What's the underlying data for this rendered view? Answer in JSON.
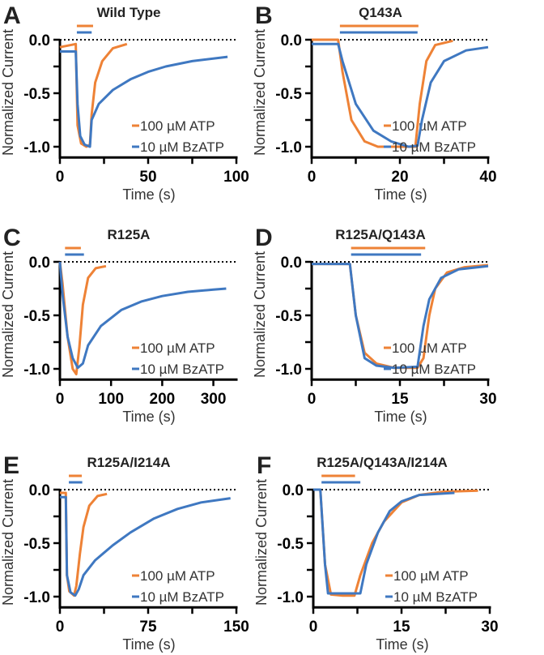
{
  "chart_data": [
    {
      "type": "line",
      "letter": "A",
      "title": "Wild Type",
      "xlabel": "Time (s)",
      "ylabel": "Normalized Current",
      "xlim": [
        0,
        100
      ],
      "xticks": [
        0,
        25,
        50,
        75,
        100
      ],
      "xticklabels": [
        "0",
        "",
        "50",
        "",
        "100"
      ],
      "ylim": [
        -1.1,
        0
      ],
      "yticks": [
        0,
        -0.25,
        -0.5,
        -0.75,
        -1.0
      ],
      "yticklabels": [
        "0.0",
        "",
        "-0.5",
        "",
        "-1.0"
      ],
      "baseline": 0,
      "series": [
        {
          "name": "100 µM ATP",
          "color": "#ee8236",
          "application": [
            9.6,
            18.8
          ],
          "points": [
            [
              0,
              -0.07
            ],
            [
              9,
              -0.04
            ],
            [
              10,
              -0.8
            ],
            [
              12,
              -0.97
            ],
            [
              15,
              -1.0
            ],
            [
              17,
              -0.98
            ],
            [
              18,
              -0.7
            ],
            [
              20,
              -0.4
            ],
            [
              24,
              -0.2
            ],
            [
              30,
              -0.08
            ],
            [
              38,
              -0.04
            ]
          ]
        },
        {
          "name": "10 µM BzATP",
          "color": "#3f78c1",
          "application": [
            9.6,
            18.0
          ],
          "points": [
            [
              0,
              -0.11
            ],
            [
              9,
              -0.11
            ],
            [
              10,
              -0.6
            ],
            [
              11.5,
              -0.9
            ],
            [
              14,
              -0.98
            ],
            [
              17,
              -1.0
            ],
            [
              18,
              -0.75
            ],
            [
              22,
              -0.6
            ],
            [
              30,
              -0.47
            ],
            [
              40,
              -0.37
            ],
            [
              50,
              -0.3
            ],
            [
              60,
              -0.25
            ],
            [
              75,
              -0.2
            ],
            [
              95,
              -0.16
            ]
          ]
        }
      ]
    },
    {
      "type": "line",
      "letter": "B",
      "title": "Q143A",
      "xlabel": "Time (s)",
      "ylabel": "Normalized Current",
      "xlim": [
        0,
        40
      ],
      "xticks": [
        0,
        10,
        20,
        30,
        40
      ],
      "xticklabels": [
        "0",
        "",
        "20",
        "",
        "40"
      ],
      "ylim": [
        -1.1,
        0
      ],
      "yticks": [
        0,
        -0.25,
        -0.5,
        -0.75,
        -1.0
      ],
      "yticklabels": [
        "0.0",
        "",
        "-0.5",
        "",
        "-1.0"
      ],
      "baseline": 0,
      "series": [
        {
          "name": "100 µM ATP",
          "color": "#ee8236",
          "application": [
            6.4,
            24.2
          ],
          "points": [
            [
              0,
              0
            ],
            [
              6,
              0
            ],
            [
              7,
              -0.3
            ],
            [
              9,
              -0.75
            ],
            [
              12,
              -0.95
            ],
            [
              15,
              -1.0
            ],
            [
              23.5,
              -1.0
            ],
            [
              24.5,
              -0.6
            ],
            [
              26,
              -0.2
            ],
            [
              28,
              -0.05
            ],
            [
              32,
              -0.01
            ]
          ]
        },
        {
          "name": "10 µM BzATP",
          "color": "#3f78c1",
          "application": [
            6.4,
            24.0
          ],
          "points": [
            [
              0,
              -0.04
            ],
            [
              6,
              -0.04
            ],
            [
              7,
              -0.2
            ],
            [
              10,
              -0.6
            ],
            [
              14,
              -0.85
            ],
            [
              18,
              -0.95
            ],
            [
              22,
              -1.0
            ],
            [
              24,
              -0.99
            ],
            [
              25,
              -0.75
            ],
            [
              27,
              -0.4
            ],
            [
              30,
              -0.2
            ],
            [
              35,
              -0.1
            ],
            [
              40,
              -0.07
            ]
          ]
        }
      ]
    },
    {
      "type": "line",
      "letter": "C",
      "title": "R125A",
      "xlabel": "Time (s)",
      "ylabel": "Normalized Current",
      "xlim": [
        0,
        345
      ],
      "xticks": [
        0,
        100,
        200,
        300
      ],
      "xticklabels": [
        "0",
        "100",
        "200",
        "300"
      ],
      "ylim": [
        -1.1,
        0
      ],
      "yticks": [
        0,
        -0.25,
        -0.5,
        -0.75,
        -1.0
      ],
      "yticklabels": [
        "0.0",
        "",
        "-0.5",
        "",
        "-1.0"
      ],
      "baseline": 0,
      "series": [
        {
          "name": "100 µM ATP",
          "color": "#ee8236",
          "application": [
            10,
            41
          ],
          "points": [
            [
              0,
              0
            ],
            [
              5,
              -0.2
            ],
            [
              15,
              -0.7
            ],
            [
              25,
              -1.0
            ],
            [
              32,
              -1.05
            ],
            [
              38,
              -0.8
            ],
            [
              45,
              -0.4
            ],
            [
              55,
              -0.15
            ],
            [
              70,
              -0.06
            ],
            [
              90,
              -0.04
            ]
          ]
        },
        {
          "name": "10 µM BzATP",
          "color": "#3f78c1",
          "application": [
            10,
            47
          ],
          "points": [
            [
              0,
              0
            ],
            [
              5,
              -0.3
            ],
            [
              15,
              -0.7
            ],
            [
              25,
              -0.9
            ],
            [
              35,
              -0.99
            ],
            [
              45,
              -0.95
            ],
            [
              55,
              -0.78
            ],
            [
              80,
              -0.6
            ],
            [
              120,
              -0.45
            ],
            [
              160,
              -0.37
            ],
            [
              200,
              -0.32
            ],
            [
              250,
              -0.28
            ],
            [
              300,
              -0.26
            ],
            [
              325,
              -0.25
            ]
          ]
        }
      ]
    },
    {
      "type": "line",
      "letter": "D",
      "title": "R125A/Q143A",
      "xlabel": "Time (s)",
      "ylabel": "Normalized Current",
      "xlim": [
        0,
        30
      ],
      "xticks": [
        0,
        7.5,
        15,
        22.5,
        30
      ],
      "xticklabels": [
        "0",
        "",
        "15",
        "",
        "30"
      ],
      "ylim": [
        -1.1,
        0
      ],
      "yticks": [
        0,
        -0.25,
        -0.5,
        -0.75,
        -1.0
      ],
      "yticklabels": [
        "0.0",
        "",
        "-0.5",
        "",
        "-1.0"
      ],
      "baseline": 0,
      "series": [
        {
          "name": "100 µM ATP",
          "color": "#ee8236",
          "application": [
            6.7,
            19.3
          ],
          "points": [
            [
              0,
              -0.02
            ],
            [
              6.5,
              -0.02
            ],
            [
              7.5,
              -0.5
            ],
            [
              9,
              -0.85
            ],
            [
              11,
              -0.95
            ],
            [
              14,
              -0.99
            ],
            [
              18,
              -0.99
            ],
            [
              19,
              -0.9
            ],
            [
              20,
              -0.5
            ],
            [
              21,
              -0.25
            ],
            [
              23,
              -0.1
            ],
            [
              26,
              -0.05
            ],
            [
              30,
              -0.03
            ]
          ]
        },
        {
          "name": "10 µM BzATP",
          "color": "#3f78c1",
          "application": [
            6.7,
            18.6
          ],
          "points": [
            [
              0,
              -0.02
            ],
            [
              6.5,
              -0.02
            ],
            [
              7.5,
              -0.5
            ],
            [
              9,
              -0.9
            ],
            [
              11,
              -0.97
            ],
            [
              14,
              -0.99
            ],
            [
              18,
              -0.98
            ],
            [
              19,
              -0.6
            ],
            [
              20,
              -0.35
            ],
            [
              22,
              -0.15
            ],
            [
              25,
              -0.07
            ],
            [
              30,
              -0.04
            ]
          ]
        }
      ]
    },
    {
      "type": "line",
      "letter": "E",
      "title": "R125A/I214A",
      "xlabel": "Time (s)",
      "ylabel": "Normalized Current",
      "xlim": [
        0,
        150
      ],
      "xticks": [
        0,
        37.5,
        75,
        112.5,
        150
      ],
      "xticklabels": [
        "0",
        "",
        "75",
        "",
        "150"
      ],
      "ylim": [
        -1.1,
        0
      ],
      "yticks": [
        0,
        -0.25,
        -0.5,
        -0.75,
        -1.0
      ],
      "yticklabels": [
        "0.0",
        "",
        "-0.5",
        "",
        "-1.0"
      ],
      "baseline": 0,
      "series": [
        {
          "name": "100 µM ATP",
          "color": "#ee8236",
          "application": [
            7.6,
            18.6
          ],
          "points": [
            [
              0,
              -0.03
            ],
            [
              5,
              -0.03
            ],
            [
              6,
              -0.8
            ],
            [
              8,
              -0.95
            ],
            [
              12,
              -0.99
            ],
            [
              14,
              -0.9
            ],
            [
              17,
              -0.6
            ],
            [
              20,
              -0.35
            ],
            [
              25,
              -0.15
            ],
            [
              32,
              -0.06
            ],
            [
              40,
              -0.04
            ]
          ]
        },
        {
          "name": "10 µM BzATP",
          "color": "#3f78c1",
          "application": [
            7.6,
            19.0
          ],
          "points": [
            [
              0,
              -0.07
            ],
            [
              5,
              -0.07
            ],
            [
              6,
              -0.8
            ],
            [
              9,
              -0.96
            ],
            [
              13,
              -0.99
            ],
            [
              16,
              -0.93
            ],
            [
              20,
              -0.8
            ],
            [
              30,
              -0.66
            ],
            [
              45,
              -0.52
            ],
            [
              60,
              -0.4
            ],
            [
              80,
              -0.27
            ],
            [
              100,
              -0.18
            ],
            [
              120,
              -0.12
            ],
            [
              145,
              -0.08
            ]
          ]
        }
      ]
    },
    {
      "type": "line",
      "letter": "F",
      "title": "R125A/Q143A/I214A",
      "xlabel": "Time (s)",
      "ylabel": "Normalized Current",
      "xlim": [
        0,
        30
      ],
      "xticks": [
        0,
        7.5,
        15,
        22.5,
        30
      ],
      "xticklabels": [
        "0",
        "",
        "15",
        "",
        "30"
      ],
      "ylim": [
        -1.1,
        0
      ],
      "yticks": [
        0,
        -0.25,
        -0.5,
        -0.75,
        -1.0
      ],
      "yticklabels": [
        "0.0",
        "",
        "-0.5",
        "",
        "-1.0"
      ],
      "baseline": 0,
      "series": [
        {
          "name": "100 µM ATP",
          "color": "#ee8236",
          "application": [
            1.4,
            7.1
          ],
          "points": [
            [
              0,
              0
            ],
            [
              1.2,
              0
            ],
            [
              2,
              -0.7
            ],
            [
              3,
              -0.98
            ],
            [
              5,
              -0.99
            ],
            [
              7,
              -0.99
            ],
            [
              8,
              -0.8
            ],
            [
              10,
              -0.5
            ],
            [
              12,
              -0.3
            ],
            [
              15,
              -0.12
            ],
            [
              18,
              -0.05
            ],
            [
              22,
              -0.02
            ],
            [
              28,
              -0.01
            ]
          ]
        },
        {
          "name": "10 µM BzATP",
          "color": "#3f78c1",
          "application": [
            1.4,
            8.0
          ],
          "points": [
            [
              0,
              0
            ],
            [
              1.2,
              0
            ],
            [
              2,
              -0.7
            ],
            [
              2.5,
              -0.97
            ],
            [
              8,
              -0.97
            ],
            [
              9,
              -0.7
            ],
            [
              11,
              -0.4
            ],
            [
              13,
              -0.2
            ],
            [
              15,
              -0.11
            ],
            [
              18,
              -0.05
            ],
            [
              24,
              -0.03
            ]
          ]
        }
      ]
    }
  ]
}
